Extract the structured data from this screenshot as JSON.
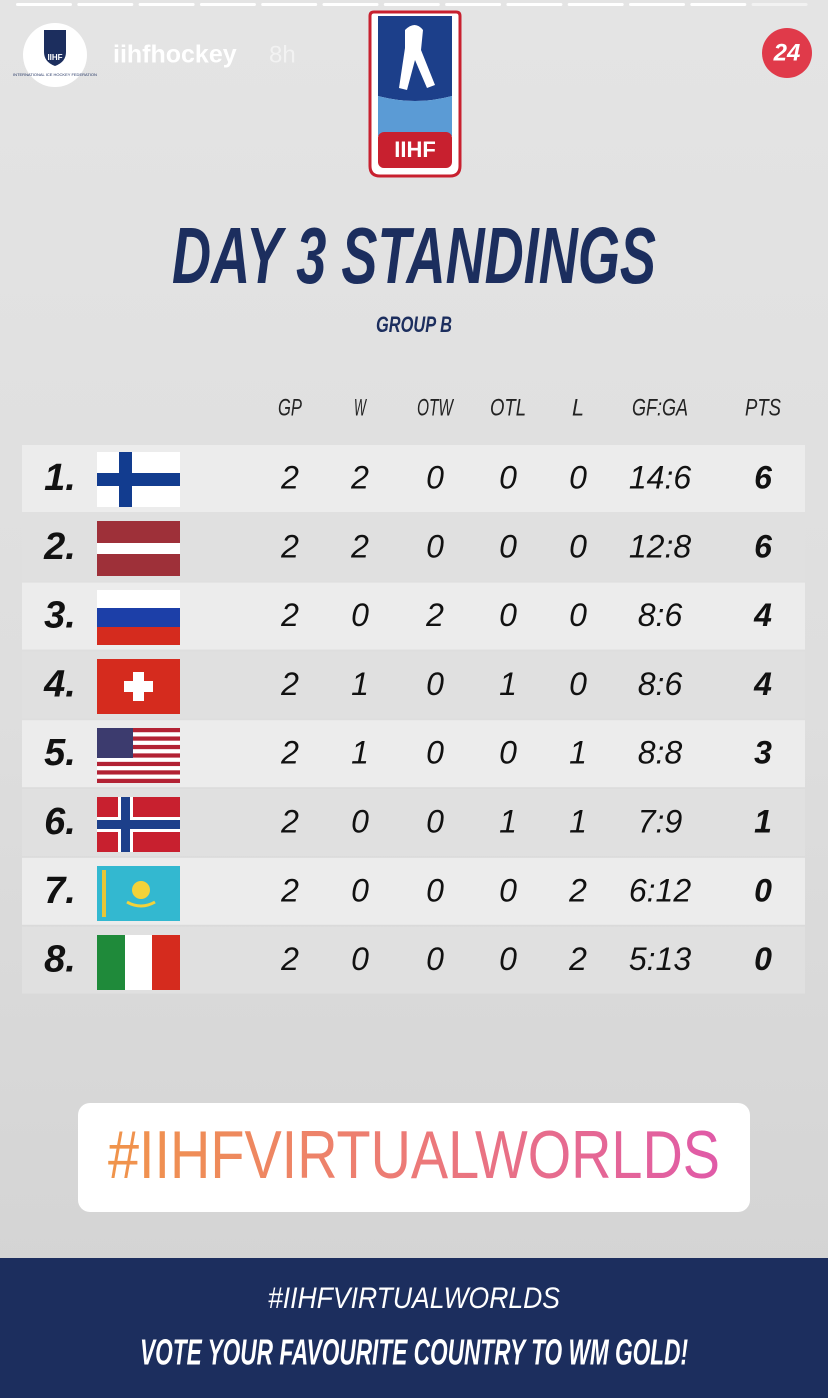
{
  "story": {
    "account": "iihfhockey",
    "time": "8h",
    "badge": "24",
    "avatar_logo": "IIHF",
    "avatar_caption": "INTERNATIONAL ICE HOCKEY FEDERATION"
  },
  "graphic": {
    "logo_text": "IIHF",
    "title": "DAY 3 STANDINGS",
    "subtitle": "GROUP B",
    "table": {
      "columns": [
        "GP",
        "W",
        "OTW",
        "OTL",
        "L",
        "GF:GA",
        "PTS"
      ],
      "rows": [
        {
          "rank": "1.",
          "cells": [
            "2",
            "2",
            "0",
            "0",
            "0",
            "14:6",
            "6"
          ]
        },
        {
          "rank": "2.",
          "cells": [
            "2",
            "2",
            "0",
            "0",
            "0",
            "12:8",
            "6"
          ]
        },
        {
          "rank": "3.",
          "cells": [
            "2",
            "0",
            "2",
            "0",
            "0",
            "8:6",
            "4"
          ]
        },
        {
          "rank": "4.",
          "cells": [
            "2",
            "1",
            "0",
            "1",
            "0",
            "8:6",
            "4"
          ]
        },
        {
          "rank": "5.",
          "cells": [
            "2",
            "1",
            "0",
            "0",
            "1",
            "8:8",
            "3"
          ]
        },
        {
          "rank": "6.",
          "cells": [
            "2",
            "0",
            "0",
            "1",
            "1",
            "7:9",
            "1"
          ]
        },
        {
          "rank": "7.",
          "cells": [
            "2",
            "0",
            "0",
            "0",
            "2",
            "6:12",
            "0"
          ]
        },
        {
          "rank": "8.",
          "cells": [
            "2",
            "0",
            "0",
            "0",
            "2",
            "5:13",
            "0"
          ]
        }
      ]
    }
  },
  "sticker": "#IIHFVIRTUALWORLDS",
  "footer": {
    "hashtag": "#IIHFVIRTUALWORLDS",
    "text": "VOTE YOUR FAVOURITE COUNTRY TO WM GOLD!"
  }
}
